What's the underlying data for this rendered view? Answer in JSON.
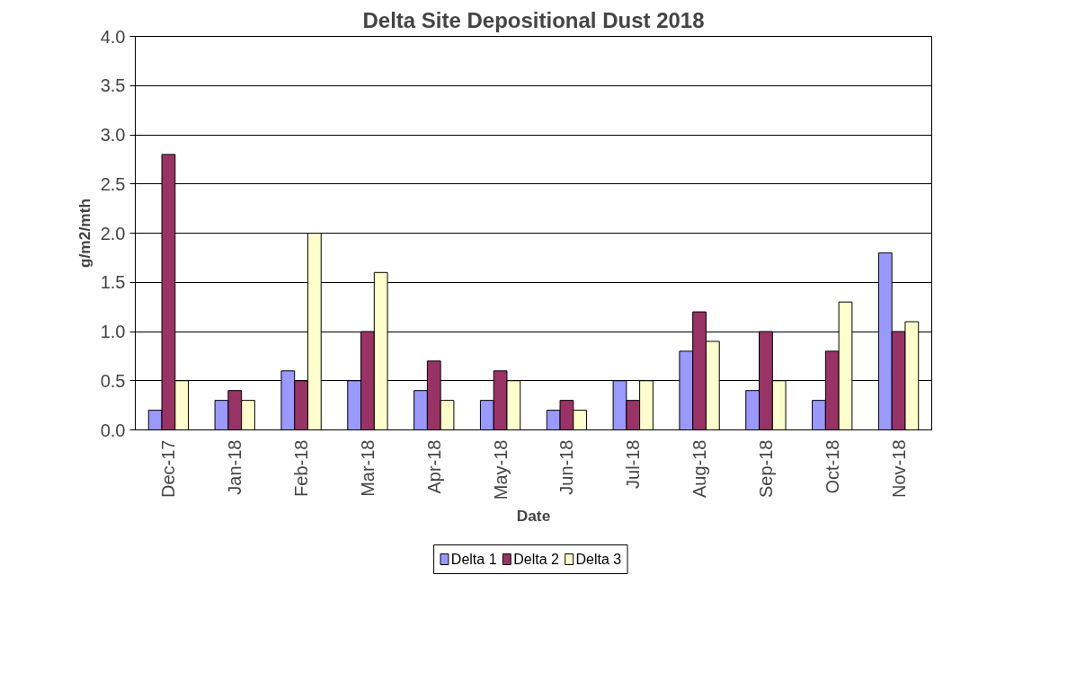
{
  "chart_data": {
    "type": "bar",
    "title": "Delta Site Depositional Dust 2018",
    "xlabel": "Date",
    "ylabel": "g/m2/mth",
    "categories": [
      "Dec-17",
      "Jan-18",
      "Feb-18",
      "Mar-18",
      "Apr-18",
      "May-18",
      "Jun-18",
      "Jul-18",
      "Aug-18",
      "Sep-18",
      "Oct-18",
      "Nov-18"
    ],
    "series": [
      {
        "name": "Delta 1",
        "color": "#9999ff",
        "values": [
          0.2,
          0.3,
          0.6,
          0.5,
          0.4,
          0.3,
          0.2,
          0.5,
          0.8,
          0.4,
          0.3,
          1.8
        ]
      },
      {
        "name": "Delta 2",
        "color": "#993366",
        "values": [
          2.8,
          0.4,
          0.5,
          1.0,
          0.7,
          0.6,
          0.3,
          0.3,
          1.2,
          1.0,
          0.8,
          1.0
        ]
      },
      {
        "name": "Delta 3",
        "color": "#ffffcc",
        "values": [
          0.5,
          0.3,
          2.0,
          1.6,
          0.3,
          0.5,
          0.2,
          0.5,
          0.9,
          0.5,
          1.3,
          1.1
        ]
      }
    ],
    "ylim": [
      0,
      4
    ],
    "yticks": [
      {
        "value": 0,
        "label": "0.0"
      },
      {
        "value": 0.5,
        "label": "0.5"
      },
      {
        "value": 1,
        "label": "1.0"
      },
      {
        "value": 1.5,
        "label": "1.5"
      },
      {
        "value": 2,
        "label": "2.0"
      },
      {
        "value": 2.5,
        "label": "2.5"
      },
      {
        "value": 3,
        "label": "3.0"
      },
      {
        "value": 3.5,
        "label": "3.5"
      },
      {
        "value": 4,
        "label": "4.0"
      }
    ],
    "grid": "y",
    "legend": "bottom"
  }
}
